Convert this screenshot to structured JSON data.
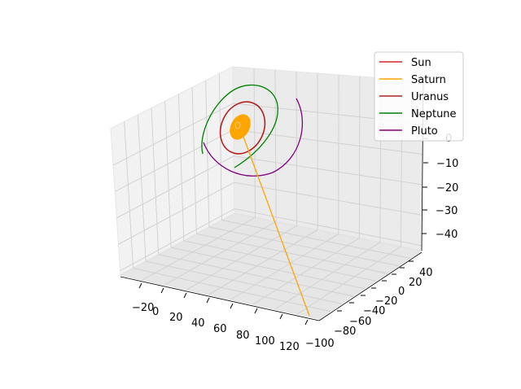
{
  "chart_data": {
    "type": "line",
    "projection": "3d",
    "title": "",
    "grid": true,
    "legend_position": "top-right",
    "axes": {
      "x": {
        "ticks": [
          "−20",
          "0",
          "20",
          "40",
          "60",
          "80",
          "100",
          "120"
        ]
      },
      "y": {
        "ticks": [
          "40",
          "20",
          "0",
          "−20",
          "−40",
          "−60",
          "−80",
          "−100"
        ]
      },
      "z": {
        "ticks": [
          "0",
          "−10",
          "−20",
          "−30",
          "−40"
        ]
      }
    },
    "series": [
      {
        "name": "Sun",
        "color": "#d62728"
      },
      {
        "name": "Saturn",
        "color": "#ffa500"
      },
      {
        "name": "Uranus",
        "color": "#b22222"
      },
      {
        "name": "Neptune",
        "color": "#008000"
      },
      {
        "name": "Pluto",
        "color": "#800080"
      }
    ]
  }
}
